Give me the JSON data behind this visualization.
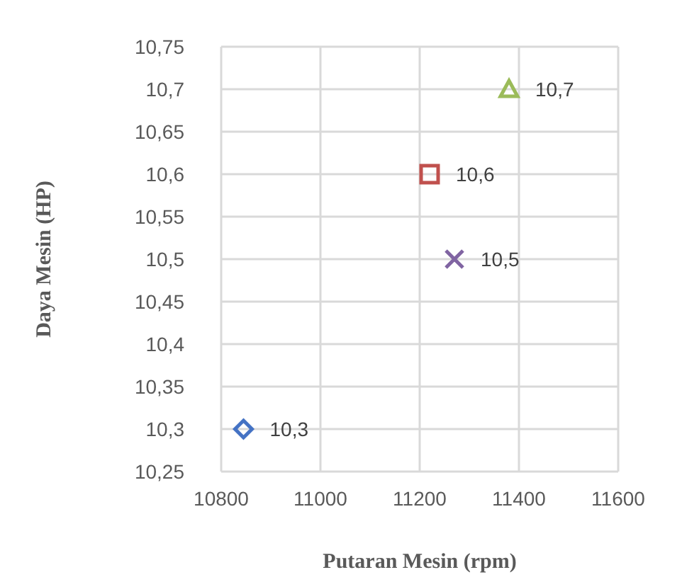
{
  "chart_data": {
    "type": "scatter",
    "xlabel": "Putaran Mesin (rpm)",
    "ylabel": "Daya Mesin (HP)",
    "xlim": [
      10800,
      11600
    ],
    "xticks": [
      10800,
      11000,
      11200,
      11400,
      11600
    ],
    "ylim": [
      10.25,
      10.75
    ],
    "yticks": [
      {
        "value": 10.25,
        "label": "10,25"
      },
      {
        "value": 10.3,
        "label": "10,3"
      },
      {
        "value": 10.35,
        "label": "10,35"
      },
      {
        "value": 10.4,
        "label": "10,4"
      },
      {
        "value": 10.45,
        "label": "10,45"
      },
      {
        "value": 10.5,
        "label": "10,5"
      },
      {
        "value": 10.55,
        "label": "10,55"
      },
      {
        "value": 10.6,
        "label": "10,6"
      },
      {
        "value": 10.65,
        "label": "10,65"
      },
      {
        "value": 10.7,
        "label": "10,7"
      },
      {
        "value": 10.75,
        "label": "10,75"
      }
    ],
    "grid": true,
    "legend": false,
    "series": [
      {
        "x": [
          10845
        ],
        "values": [
          10.3
        ],
        "color": "#4472c4",
        "marker": "diamond",
        "value_labels": [
          "10,3"
        ]
      },
      {
        "x": [
          11220
        ],
        "values": [
          10.6
        ],
        "color": "#c0504d",
        "marker": "square",
        "value_labels": [
          "10,6"
        ]
      },
      {
        "x": [
          11270
        ],
        "values": [
          10.5
        ],
        "color": "#8064a2",
        "marker": "cross",
        "value_labels": [
          "10,5"
        ]
      },
      {
        "x": [
          11380
        ],
        "values": [
          10.7
        ],
        "color": "#9bbb59",
        "marker": "triangle",
        "value_labels": [
          "10,7"
        ]
      }
    ]
  }
}
